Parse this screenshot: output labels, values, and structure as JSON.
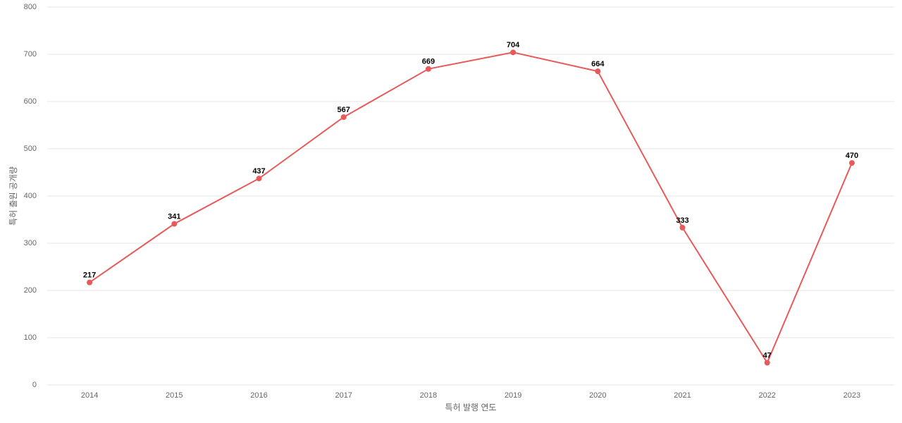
{
  "chart_data": {
    "type": "line",
    "x_label": "특허 발행 연도",
    "y_label": "특허 출원 공개량",
    "categories": [
      "2014",
      "2015",
      "2016",
      "2017",
      "2018",
      "2019",
      "2020",
      "2021",
      "2022",
      "2023"
    ],
    "series": [
      {
        "name": "특허 출원 공개량",
        "color": "#e85a5a",
        "values": [
          217,
          341,
          437,
          567,
          669,
          704,
          664,
          333,
          47,
          470
        ]
      }
    ],
    "ylim": [
      0,
      800
    ],
    "yticks": [
      0,
      100,
      200,
      300,
      400,
      500,
      600,
      700,
      800
    ],
    "grid": true
  }
}
